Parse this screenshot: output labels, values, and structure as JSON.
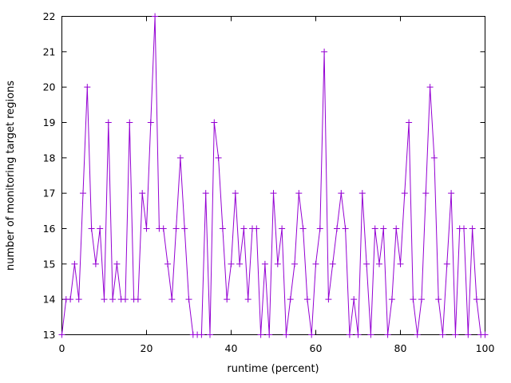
{
  "chart_data": {
    "type": "line",
    "title": "",
    "xlabel": "runtime (percent)",
    "ylabel": "number of monitoring target regions",
    "xlim": [
      0,
      100
    ],
    "ylim": [
      13,
      22
    ],
    "x_ticks": [
      0,
      20,
      40,
      60,
      80,
      100
    ],
    "y_ticks": [
      13,
      14,
      15,
      16,
      17,
      18,
      19,
      20,
      21,
      22
    ],
    "grid": false,
    "legend": "none",
    "line_color": "#9400d3",
    "marker": "plus",
    "series": [
      {
        "name": "monitoring target regions",
        "x": [
          0,
          1,
          2,
          3,
          4,
          5,
          6,
          7,
          8,
          9,
          10,
          11,
          12,
          13,
          14,
          15,
          16,
          17,
          18,
          19,
          20,
          21,
          22,
          23,
          24,
          25,
          26,
          27,
          28,
          29,
          30,
          31,
          32,
          33,
          34,
          35,
          36,
          37,
          38,
          39,
          40,
          41,
          42,
          43,
          44,
          45,
          46,
          47,
          48,
          49,
          50,
          51,
          52,
          53,
          54,
          55,
          56,
          57,
          58,
          59,
          60,
          61,
          62,
          63,
          64,
          65,
          66,
          67,
          68,
          69,
          70,
          71,
          72,
          73,
          74,
          75,
          76,
          77,
          78,
          79,
          80,
          81,
          82,
          83,
          84,
          85,
          86,
          87,
          88,
          89,
          90,
          91,
          92,
          93,
          94,
          95,
          96,
          97,
          98,
          99,
          100
        ],
        "y": [
          13,
          14,
          14,
          15,
          14,
          17,
          20,
          16,
          15,
          16,
          14,
          19,
          14,
          15,
          14,
          14,
          19,
          14,
          14,
          17,
          16,
          19,
          22,
          16,
          16,
          15,
          14,
          16,
          18,
          16,
          14,
          13,
          13,
          13,
          17,
          13,
          19,
          18,
          16,
          14,
          15,
          17,
          15,
          16,
          14,
          16,
          16,
          13,
          15,
          13,
          17,
          15,
          16,
          13,
          14,
          15,
          17,
          16,
          14,
          13,
          15,
          16,
          21,
          14,
          15,
          16,
          17,
          16,
          13,
          14,
          13,
          17,
          15,
          13,
          16,
          15,
          16,
          13,
          14,
          16,
          15,
          17,
          19,
          14,
          13,
          14,
          17,
          20,
          18,
          14,
          13,
          15,
          17,
          13,
          16,
          16,
          13,
          16,
          14,
          13,
          13
        ]
      }
    ]
  },
  "axes": {
    "x_tick_labels": [
      "0",
      "20",
      "40",
      "60",
      "80",
      "100"
    ],
    "y_tick_labels": [
      "13",
      "14",
      "15",
      "16",
      "17",
      "18",
      "19",
      "20",
      "21",
      "22"
    ]
  },
  "colors": {
    "line": "#9400d3",
    "axis": "#000000",
    "text": "#000000",
    "background": "#ffffff"
  }
}
